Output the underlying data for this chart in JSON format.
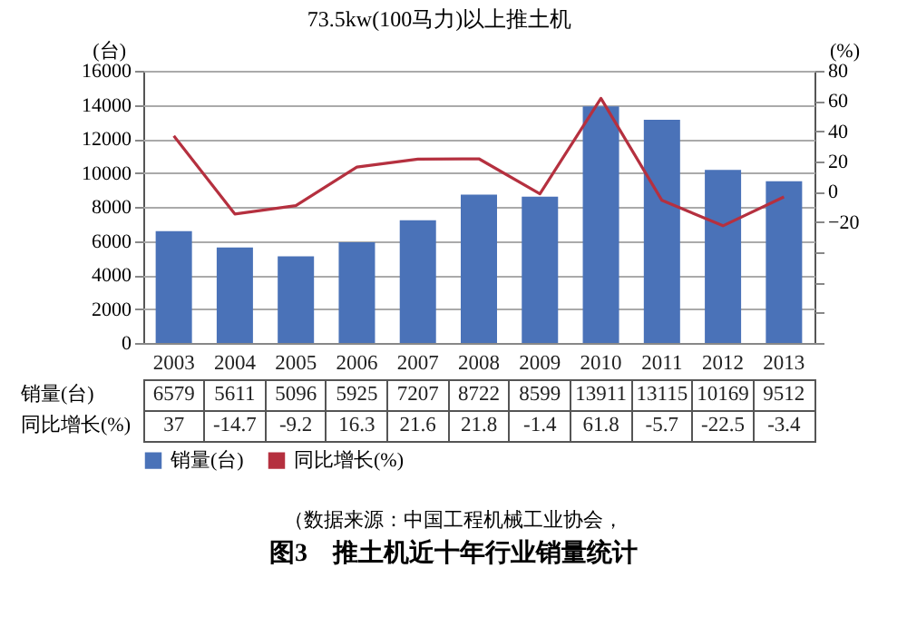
{
  "chart_data": {
    "type": "bar",
    "title": "73.5kw(100马力)以上推土机",
    "ylabel": "(台)",
    "y2label": "(%)",
    "categories": [
      "2003",
      "2004",
      "2005",
      "2006",
      "2007",
      "2008",
      "2009",
      "2010",
      "2011",
      "2012",
      "2013"
    ],
    "series": [
      {
        "name": "销量(台)",
        "color": "#4a72b8",
        "values": [
          6579,
          5611,
          5096,
          5925,
          7207,
          8722,
          8599,
          13911,
          13115,
          10169,
          9512
        ]
      },
      {
        "name": "同比增长(%)",
        "type": "line",
        "axis": "y2",
        "color": "#b5303f",
        "values": [
          37,
          -14.7,
          -9.2,
          16.3,
          21.6,
          21.8,
          -1.4,
          61.8,
          -5.7,
          -22.5,
          -3.4
        ]
      }
    ],
    "ylim": [
      0,
      16000
    ],
    "yticks": [
      0,
      2000,
      4000,
      6000,
      8000,
      10000,
      12000,
      14000,
      16000
    ],
    "y2lim": [
      -100,
      80
    ],
    "y2ticks": [
      {
        "value": -100,
        "label": null
      },
      {
        "value": -80,
        "label": null
      },
      {
        "value": -60,
        "label": null
      },
      {
        "value": -40,
        "label": null
      },
      -20,
      0,
      20,
      40,
      60,
      80
    ],
    "grid": "y",
    "legend": "bottom",
    "data_labels": true,
    "annotations": [
      "（数据来源：中国工程机械工业协会，",
      "图3　推土机近十年行业销量统计"
    ]
  }
}
